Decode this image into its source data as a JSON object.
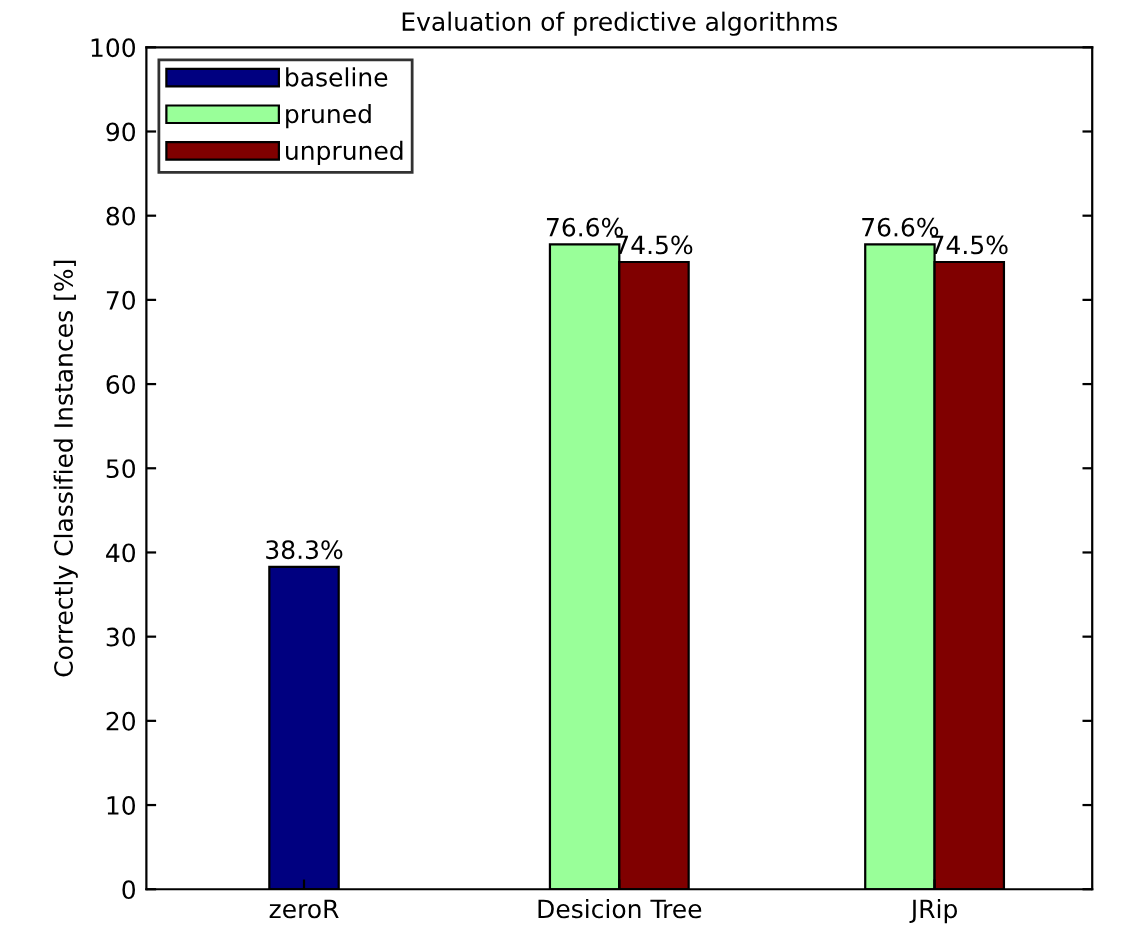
{
  "chart_data": {
    "type": "bar",
    "title": "Evaluation of predictive algorithms",
    "ylabel": "Correctly Classified Instances [%]",
    "categories": [
      "zeroR",
      "Desicion Tree",
      "JRip"
    ],
    "series": [
      {
        "name": "baseline",
        "color": "#000080",
        "values": [
          38.3,
          null,
          null
        ],
        "value_labels": [
          "38.3%",
          null,
          null
        ]
      },
      {
        "name": "pruned",
        "color": "#99ff99",
        "values": [
          null,
          76.6,
          76.6
        ],
        "value_labels": [
          null,
          "76.6%",
          "76.6%"
        ]
      },
      {
        "name": "unpruned",
        "color": "#800000",
        "values": [
          null,
          74.5,
          74.5
        ],
        "value_labels": [
          null,
          "74.5%",
          "74.5%"
        ]
      }
    ],
    "ylim": [
      0,
      100
    ],
    "yticks": [
      0,
      10,
      20,
      30,
      40,
      50,
      60,
      70,
      80,
      90,
      100
    ],
    "legend": "top left",
    "grid": false
  }
}
